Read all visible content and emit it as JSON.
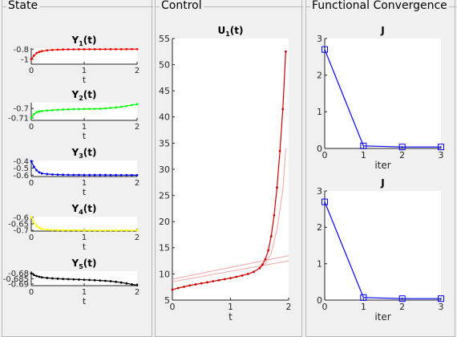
{
  "panels": {
    "state": {
      "title": "State"
    },
    "control": {
      "title": "Control"
    },
    "convergence": {
      "title": "Functional Convergence"
    }
  },
  "colors": {
    "y1": "#ff0000",
    "y2": "#00ff00",
    "y3": "#0000ff",
    "y4": "#ffff00",
    "y5": "#000000",
    "u": "#cc0000",
    "u_faint": "#f5a3a3",
    "j": "#0000ff"
  },
  "chart_data": [
    {
      "id": "y1",
      "type": "line",
      "title": "Y",
      "title_sub": "1",
      "title_suffix": "(t)",
      "xlabel": "t",
      "xlim": [
        0,
        2
      ],
      "ylim": [
        -1.1,
        -0.78
      ],
      "xticks": [
        "0",
        "1",
        "2"
      ],
      "yticks": [
        {
          "v": -0.8,
          "l": "-0.8"
        },
        {
          "v": -1,
          "l": "-1"
        }
      ],
      "x": [
        0,
        0.05,
        0.1,
        0.15,
        0.2,
        0.3,
        0.4,
        0.5,
        0.6,
        0.7,
        0.8,
        0.9,
        1,
        1.1,
        1.2,
        1.3,
        1.4,
        1.5,
        1.6,
        1.7,
        1.8,
        1.9,
        2
      ],
      "values": [
        -1,
        -0.93,
        -0.88,
        -0.855,
        -0.84,
        -0.825,
        -0.815,
        -0.81,
        -0.807,
        -0.805,
        -0.804,
        -0.803,
        -0.803,
        -0.802,
        -0.802,
        -0.802,
        -0.802,
        -0.801,
        -0.801,
        -0.801,
        -0.8,
        -0.8,
        -0.8
      ]
    },
    {
      "id": "y2",
      "type": "line",
      "title": "Y",
      "title_sub": "2",
      "title_suffix": "(t)",
      "xlabel": "t",
      "xlim": [
        0,
        2
      ],
      "ylim": [
        -0.7125,
        -0.694
      ],
      "xticks": [
        "0",
        "1",
        "2"
      ],
      "yticks": [
        {
          "v": -0.7,
          "l": "-0.7"
        },
        {
          "v": -0.71,
          "l": "-0.71"
        }
      ],
      "x": [
        0,
        0.05,
        0.1,
        0.15,
        0.2,
        0.3,
        0.4,
        0.5,
        0.6,
        0.7,
        0.8,
        0.9,
        1,
        1.1,
        1.2,
        1.3,
        1.4,
        1.5,
        1.6,
        1.7,
        1.8,
        1.9,
        2
      ],
      "values": [
        -0.71,
        -0.706,
        -0.704,
        -0.7033,
        -0.7028,
        -0.7022,
        -0.7018,
        -0.7015,
        -0.7012,
        -0.701,
        -0.7008,
        -0.7007,
        -0.7006,
        -0.7005,
        -0.7004,
        -0.7003,
        -0.7,
        -0.6995,
        -0.699,
        -0.6983,
        -0.6975,
        -0.6965,
        -0.6955
      ]
    },
    {
      "id": "y3",
      "type": "line",
      "title": "Y",
      "title_sub": "3",
      "title_suffix": "(t)",
      "xlabel": "t",
      "xlim": [
        0,
        2
      ],
      "ylim": [
        -0.62,
        -0.39
      ],
      "xticks": [
        "0",
        "1",
        "2"
      ],
      "yticks": [
        {
          "v": -0.4,
          "l": "-0.4"
        },
        {
          "v": -0.5,
          "l": "-0.5"
        },
        {
          "v": -0.6,
          "l": "-0.6"
        }
      ],
      "x": [
        0,
        0.05,
        0.1,
        0.15,
        0.2,
        0.3,
        0.4,
        0.5,
        0.6,
        0.7,
        0.8,
        0.9,
        1,
        1.1,
        1.2,
        1.3,
        1.4,
        1.5,
        1.6,
        1.7,
        1.8,
        1.9,
        2
      ],
      "values": [
        -0.4,
        -0.48,
        -0.53,
        -0.56,
        -0.575,
        -0.585,
        -0.59,
        -0.593,
        -0.595,
        -0.596,
        -0.597,
        -0.597,
        -0.598,
        -0.598,
        -0.598,
        -0.598,
        -0.598,
        -0.599,
        -0.599,
        -0.599,
        -0.599,
        -0.6,
        -0.6
      ]
    },
    {
      "id": "y4",
      "type": "line",
      "title": "Y",
      "title_sub": "4",
      "title_suffix": "(t)",
      "xlabel": "t",
      "xlim": [
        0,
        2
      ],
      "ylim": [
        -0.705,
        -0.595
      ],
      "xticks": [
        "0",
        "1",
        "2"
      ],
      "yticks": [
        {
          "v": -0.6,
          "l": "-0.6"
        },
        {
          "v": -0.65,
          "l": "-0.65"
        },
        {
          "v": -0.7,
          "l": "-0.7"
        }
      ],
      "x": [
        0,
        0.05,
        0.1,
        0.15,
        0.2,
        0.3,
        0.4,
        0.5,
        0.6,
        0.7,
        0.8,
        0.9,
        1,
        1.1,
        1.2,
        1.3,
        1.4,
        1.5,
        1.6,
        1.7,
        1.8,
        1.9,
        2
      ],
      "values": [
        -0.6,
        -0.64,
        -0.665,
        -0.68,
        -0.688,
        -0.694,
        -0.697,
        -0.698,
        -0.699,
        -0.699,
        -0.699,
        -0.699,
        -0.7,
        -0.7,
        -0.7,
        -0.7,
        -0.7,
        -0.7,
        -0.7,
        -0.7,
        -0.7,
        -0.7,
        -0.7
      ]
    },
    {
      "id": "y5",
      "type": "line",
      "title": "Y",
      "title_sub": "5",
      "title_suffix": "(t)",
      "xlabel": "t",
      "xlim": [
        0,
        2
      ],
      "ylim": [
        -0.6915,
        -0.678
      ],
      "xticks": [
        "0",
        "1",
        "2"
      ],
      "yticks": [
        {
          "v": -0.68,
          "l": "-0.68"
        },
        {
          "v": -0.685,
          "l": "-0.685"
        },
        {
          "v": -0.69,
          "l": "-0.69"
        }
      ],
      "x": [
        0,
        0.05,
        0.1,
        0.15,
        0.2,
        0.3,
        0.4,
        0.5,
        0.6,
        0.7,
        0.8,
        0.9,
        1,
        1.1,
        1.2,
        1.3,
        1.4,
        1.5,
        1.6,
        1.7,
        1.8,
        1.9,
        2
      ],
      "values": [
        -0.68,
        -0.6815,
        -0.6825,
        -0.6832,
        -0.6837,
        -0.6843,
        -0.6847,
        -0.685,
        -0.6852,
        -0.6854,
        -0.6856,
        -0.6858,
        -0.686,
        -0.6862,
        -0.6864,
        -0.6867,
        -0.687,
        -0.6874,
        -0.6879,
        -0.6886,
        -0.6894,
        -0.6903,
        -0.691
      ]
    },
    {
      "id": "u",
      "type": "line",
      "title": "U",
      "title_sub": "1",
      "title_suffix": "(t)",
      "xlabel": "t",
      "xlim": [
        0,
        2
      ],
      "ylim": [
        5,
        55
      ],
      "xticks": [
        "0",
        "1",
        "2"
      ],
      "yticks": [
        {
          "v": 5,
          "l": "5"
        },
        {
          "v": 10,
          "l": "10"
        },
        {
          "v": 15,
          "l": "15"
        },
        {
          "v": 20,
          "l": "20"
        },
        {
          "v": 25,
          "l": "25"
        },
        {
          "v": 30,
          "l": "30"
        },
        {
          "v": 35,
          "l": "35"
        },
        {
          "v": 40,
          "l": "40"
        },
        {
          "v": 45,
          "l": "45"
        },
        {
          "v": 50,
          "l": "50"
        },
        {
          "v": 55,
          "l": "55"
        }
      ],
      "x": [
        0,
        0.1,
        0.2,
        0.3,
        0.4,
        0.5,
        0.6,
        0.7,
        0.8,
        0.9,
        1,
        1.1,
        1.2,
        1.3,
        1.4,
        1.5,
        1.55,
        1.6,
        1.65,
        1.7,
        1.75,
        1.8,
        1.85,
        1.9,
        1.95,
        2
      ],
      "values": [
        7,
        7.3,
        7.55,
        7.8,
        8,
        8.2,
        8.4,
        8.6,
        8.8,
        9,
        9.2,
        9.45,
        9.7,
        10,
        10.4,
        11.1,
        11.8,
        12.8,
        14.5,
        17.2,
        21.2,
        26.5,
        33.5,
        41.5,
        52.5,
        null
      ],
      "faint_series": [
        {
          "x": [
            0,
            2
          ],
          "values": [
            9,
            13.5
          ]
        },
        {
          "x": [
            0,
            2
          ],
          "values": [
            8.5,
            12.5
          ]
        },
        {
          "x": [
            1.5,
            1.6,
            1.7,
            1.8,
            1.9,
            1.95
          ],
          "values": [
            11,
            12,
            14,
            18.5,
            26,
            34
          ]
        }
      ]
    },
    {
      "id": "j1",
      "type": "line",
      "title": "J",
      "xlabel": "iter",
      "xlim": [
        0,
        3
      ],
      "ylim": [
        0,
        3
      ],
      "xticks": [
        "0",
        "1",
        "2",
        "3"
      ],
      "yticks": [
        {
          "v": 0,
          "l": "0"
        },
        {
          "v": 1,
          "l": "1"
        },
        {
          "v": 2,
          "l": "2"
        },
        {
          "v": 3,
          "l": "3"
        }
      ],
      "x": [
        0,
        1,
        2,
        3
      ],
      "values": [
        2.7,
        0.07,
        0.04,
        0.04
      ]
    },
    {
      "id": "j2",
      "type": "line",
      "title": "J",
      "xlabel": "iter",
      "xlim": [
        0,
        3
      ],
      "ylim": [
        0,
        3
      ],
      "xticks": [
        "0",
        "1",
        "2",
        "3"
      ],
      "yticks": [
        {
          "v": 0,
          "l": "0"
        },
        {
          "v": 1,
          "l": "1"
        },
        {
          "v": 2,
          "l": "2"
        },
        {
          "v": 3,
          "l": "3"
        }
      ],
      "x": [
        0,
        1,
        2,
        3
      ],
      "values": [
        2.7,
        0.07,
        0.04,
        0.04
      ]
    }
  ]
}
